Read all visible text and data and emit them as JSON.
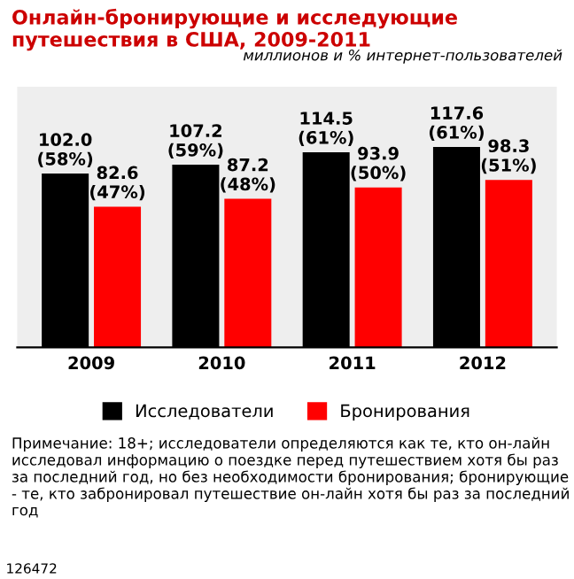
{
  "chart_data": {
    "type": "bar",
    "title": "Онлайн-бронирующие и исследующие путешествия в США, 2009-2011",
    "subtitle": "миллионов и % интернет-пользователей",
    "categories": [
      "2009",
      "2010",
      "2011",
      "2012"
    ],
    "series": [
      {
        "name": "Исследователи",
        "color": "#000000",
        "values": [
          102.0,
          107.2,
          114.5,
          117.6
        ],
        "value_labels": [
          "102.0\n(58%)",
          "107.2\n(59%)",
          "114.5\n(61%)",
          "117.6\n(61%)"
        ]
      },
      {
        "name": "Бронирования",
        "color": "#ff0000",
        "values": [
          82.6,
          87.2,
          93.9,
          98.3
        ],
        "value_labels": [
          "82.6\n(47%)",
          "87.2\n(48%)",
          "93.9\n(50%)",
          "98.3\n(51%)"
        ]
      }
    ],
    "legend": "bottom",
    "grid": false,
    "annotations": [
      "Примечание: 18+; исследователи определяются как те, кто он-лайн исследовал информацию о поездке перед путешествием хотя бы раз за последний год, но без необходимости бронирования; бронирующие - те, кто забронировал путешествие он-лайн хотя бы раз за последний год",
      "126472"
    ]
  }
}
